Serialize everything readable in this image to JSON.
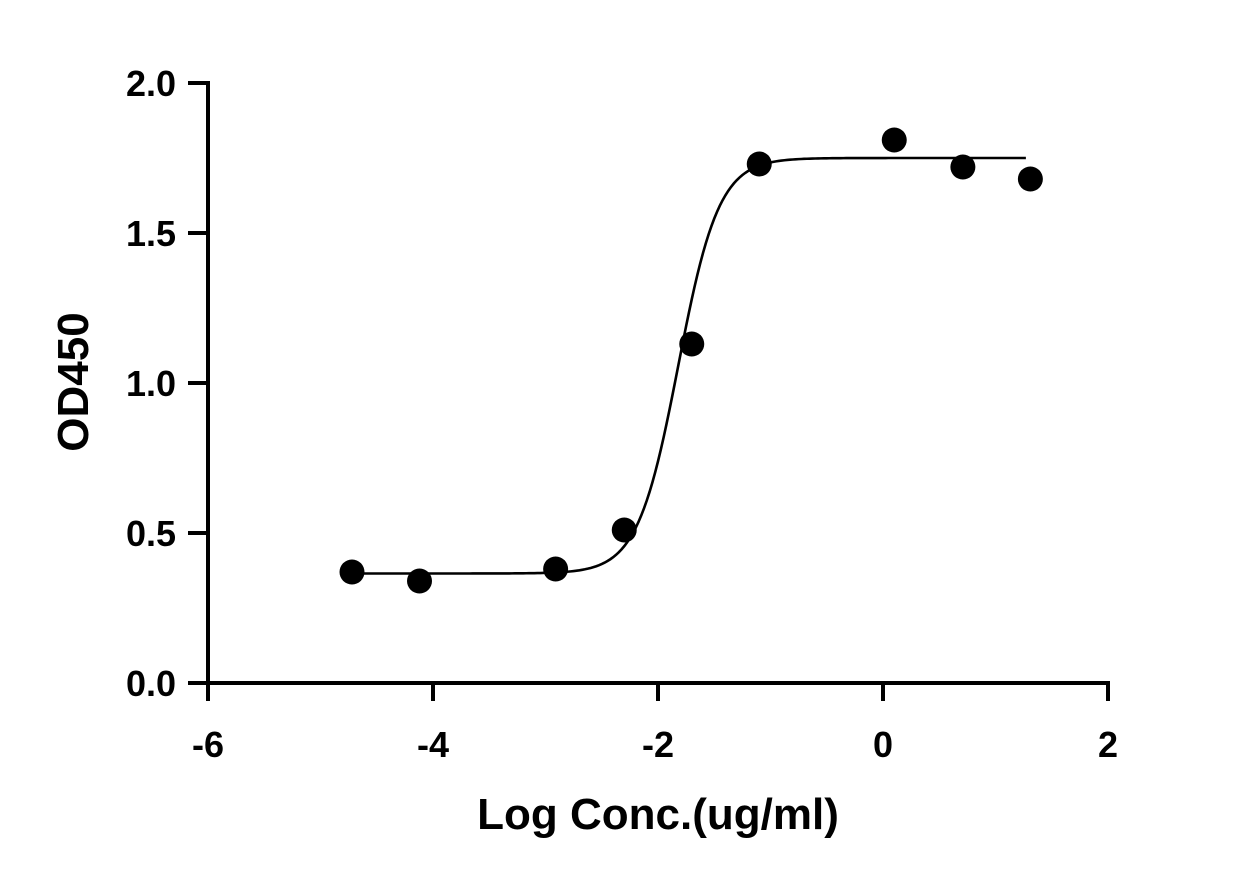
{
  "chart_data": {
    "type": "scatter",
    "title": "",
    "xlabel": "Log Conc.(ug/ml)",
    "ylabel": "OD450",
    "xlim": [
      -6,
      2
    ],
    "ylim": [
      0,
      2
    ],
    "x_ticks": [
      -6,
      -4,
      -2,
      0,
      2
    ],
    "x_tick_labels": [
      "-6",
      "-4",
      "-2",
      "0",
      "2"
    ],
    "y_ticks": [
      0,
      0.5,
      1.0,
      1.5,
      2.0
    ],
    "y_tick_labels": [
      "0.0",
      "0.5",
      "1.0",
      "1.5",
      "2.0"
    ],
    "grid": false,
    "legend": "none",
    "series": [
      {
        "x": [
          -4.72,
          -4.12,
          -2.91,
          -2.3,
          -1.7,
          -1.1,
          0.1,
          0.71,
          1.31
        ],
        "y": [
          0.37,
          0.34,
          0.38,
          0.51,
          1.13,
          1.73,
          1.81,
          1.72,
          1.68
        ],
        "marker": "circle",
        "color": "#000000"
      }
    ],
    "fit_curve": {
      "model": "4PL sigmoid",
      "bottom": 0.365,
      "top": 1.75,
      "log_ec50": -1.82,
      "hill_slope": 2.4,
      "x_range": [
        -4.72,
        1.27
      ],
      "color": "#000000"
    }
  }
}
